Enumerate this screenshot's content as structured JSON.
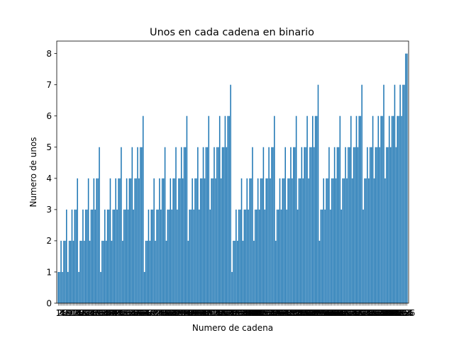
{
  "chart_data": {
    "type": "bar",
    "title": "Unos en cada cadena en binario",
    "xlabel": "Numero de cadena",
    "ylabel": "Numero de unos",
    "x_tick_label_first": "1",
    "x_tick_label_last": "256",
    "x": {
      "start": 1,
      "end": 256
    },
    "values_rule": "y = count of 1 bits in the binary representation of x (2^8 = 256 shows as 8)",
    "ylim": [
      0,
      8.4
    ],
    "yticks": [
      0,
      1,
      2,
      3,
      4,
      5,
      6,
      7,
      8
    ],
    "bar_color": "#1f77b4",
    "grid": false,
    "legend": "none"
  }
}
